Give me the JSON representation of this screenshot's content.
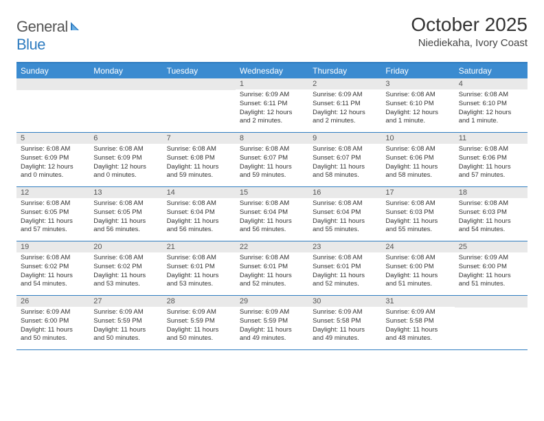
{
  "logo": {
    "text1": "General",
    "text2": "Blue"
  },
  "header": {
    "month_title": "October 2025",
    "location": "Niediekaha, Ivory Coast"
  },
  "colors": {
    "header_bar": "#3b8bd0",
    "border": "#2f7cc0",
    "date_bg": "#e9e9e9",
    "text": "#333333"
  },
  "day_names": [
    "Sunday",
    "Monday",
    "Tuesday",
    "Wednesday",
    "Thursday",
    "Friday",
    "Saturday"
  ],
  "weeks": [
    [
      {
        "date": "",
        "sunrise": "",
        "sunset": "",
        "daylight": ""
      },
      {
        "date": "",
        "sunrise": "",
        "sunset": "",
        "daylight": ""
      },
      {
        "date": "",
        "sunrise": "",
        "sunset": "",
        "daylight": ""
      },
      {
        "date": "1",
        "sunrise": "Sunrise: 6:09 AM",
        "sunset": "Sunset: 6:11 PM",
        "daylight": "Daylight: 12 hours and 2 minutes."
      },
      {
        "date": "2",
        "sunrise": "Sunrise: 6:09 AM",
        "sunset": "Sunset: 6:11 PM",
        "daylight": "Daylight: 12 hours and 2 minutes."
      },
      {
        "date": "3",
        "sunrise": "Sunrise: 6:08 AM",
        "sunset": "Sunset: 6:10 PM",
        "daylight": "Daylight: 12 hours and 1 minute."
      },
      {
        "date": "4",
        "sunrise": "Sunrise: 6:08 AM",
        "sunset": "Sunset: 6:10 PM",
        "daylight": "Daylight: 12 hours and 1 minute."
      }
    ],
    [
      {
        "date": "5",
        "sunrise": "Sunrise: 6:08 AM",
        "sunset": "Sunset: 6:09 PM",
        "daylight": "Daylight: 12 hours and 0 minutes."
      },
      {
        "date": "6",
        "sunrise": "Sunrise: 6:08 AM",
        "sunset": "Sunset: 6:09 PM",
        "daylight": "Daylight: 12 hours and 0 minutes."
      },
      {
        "date": "7",
        "sunrise": "Sunrise: 6:08 AM",
        "sunset": "Sunset: 6:08 PM",
        "daylight": "Daylight: 11 hours and 59 minutes."
      },
      {
        "date": "8",
        "sunrise": "Sunrise: 6:08 AM",
        "sunset": "Sunset: 6:07 PM",
        "daylight": "Daylight: 11 hours and 59 minutes."
      },
      {
        "date": "9",
        "sunrise": "Sunrise: 6:08 AM",
        "sunset": "Sunset: 6:07 PM",
        "daylight": "Daylight: 11 hours and 58 minutes."
      },
      {
        "date": "10",
        "sunrise": "Sunrise: 6:08 AM",
        "sunset": "Sunset: 6:06 PM",
        "daylight": "Daylight: 11 hours and 58 minutes."
      },
      {
        "date": "11",
        "sunrise": "Sunrise: 6:08 AM",
        "sunset": "Sunset: 6:06 PM",
        "daylight": "Daylight: 11 hours and 57 minutes."
      }
    ],
    [
      {
        "date": "12",
        "sunrise": "Sunrise: 6:08 AM",
        "sunset": "Sunset: 6:05 PM",
        "daylight": "Daylight: 11 hours and 57 minutes."
      },
      {
        "date": "13",
        "sunrise": "Sunrise: 6:08 AM",
        "sunset": "Sunset: 6:05 PM",
        "daylight": "Daylight: 11 hours and 56 minutes."
      },
      {
        "date": "14",
        "sunrise": "Sunrise: 6:08 AM",
        "sunset": "Sunset: 6:04 PM",
        "daylight": "Daylight: 11 hours and 56 minutes."
      },
      {
        "date": "15",
        "sunrise": "Sunrise: 6:08 AM",
        "sunset": "Sunset: 6:04 PM",
        "daylight": "Daylight: 11 hours and 56 minutes."
      },
      {
        "date": "16",
        "sunrise": "Sunrise: 6:08 AM",
        "sunset": "Sunset: 6:04 PM",
        "daylight": "Daylight: 11 hours and 55 minutes."
      },
      {
        "date": "17",
        "sunrise": "Sunrise: 6:08 AM",
        "sunset": "Sunset: 6:03 PM",
        "daylight": "Daylight: 11 hours and 55 minutes."
      },
      {
        "date": "18",
        "sunrise": "Sunrise: 6:08 AM",
        "sunset": "Sunset: 6:03 PM",
        "daylight": "Daylight: 11 hours and 54 minutes."
      }
    ],
    [
      {
        "date": "19",
        "sunrise": "Sunrise: 6:08 AM",
        "sunset": "Sunset: 6:02 PM",
        "daylight": "Daylight: 11 hours and 54 minutes."
      },
      {
        "date": "20",
        "sunrise": "Sunrise: 6:08 AM",
        "sunset": "Sunset: 6:02 PM",
        "daylight": "Daylight: 11 hours and 53 minutes."
      },
      {
        "date": "21",
        "sunrise": "Sunrise: 6:08 AM",
        "sunset": "Sunset: 6:01 PM",
        "daylight": "Daylight: 11 hours and 53 minutes."
      },
      {
        "date": "22",
        "sunrise": "Sunrise: 6:08 AM",
        "sunset": "Sunset: 6:01 PM",
        "daylight": "Daylight: 11 hours and 52 minutes."
      },
      {
        "date": "23",
        "sunrise": "Sunrise: 6:08 AM",
        "sunset": "Sunset: 6:01 PM",
        "daylight": "Daylight: 11 hours and 52 minutes."
      },
      {
        "date": "24",
        "sunrise": "Sunrise: 6:08 AM",
        "sunset": "Sunset: 6:00 PM",
        "daylight": "Daylight: 11 hours and 51 minutes."
      },
      {
        "date": "25",
        "sunrise": "Sunrise: 6:09 AM",
        "sunset": "Sunset: 6:00 PM",
        "daylight": "Daylight: 11 hours and 51 minutes."
      }
    ],
    [
      {
        "date": "26",
        "sunrise": "Sunrise: 6:09 AM",
        "sunset": "Sunset: 6:00 PM",
        "daylight": "Daylight: 11 hours and 50 minutes."
      },
      {
        "date": "27",
        "sunrise": "Sunrise: 6:09 AM",
        "sunset": "Sunset: 5:59 PM",
        "daylight": "Daylight: 11 hours and 50 minutes."
      },
      {
        "date": "28",
        "sunrise": "Sunrise: 6:09 AM",
        "sunset": "Sunset: 5:59 PM",
        "daylight": "Daylight: 11 hours and 50 minutes."
      },
      {
        "date": "29",
        "sunrise": "Sunrise: 6:09 AM",
        "sunset": "Sunset: 5:59 PM",
        "daylight": "Daylight: 11 hours and 49 minutes."
      },
      {
        "date": "30",
        "sunrise": "Sunrise: 6:09 AM",
        "sunset": "Sunset: 5:58 PM",
        "daylight": "Daylight: 11 hours and 49 minutes."
      },
      {
        "date": "31",
        "sunrise": "Sunrise: 6:09 AM",
        "sunset": "Sunset: 5:58 PM",
        "daylight": "Daylight: 11 hours and 48 minutes."
      },
      {
        "date": "",
        "sunrise": "",
        "sunset": "",
        "daylight": ""
      }
    ]
  ]
}
